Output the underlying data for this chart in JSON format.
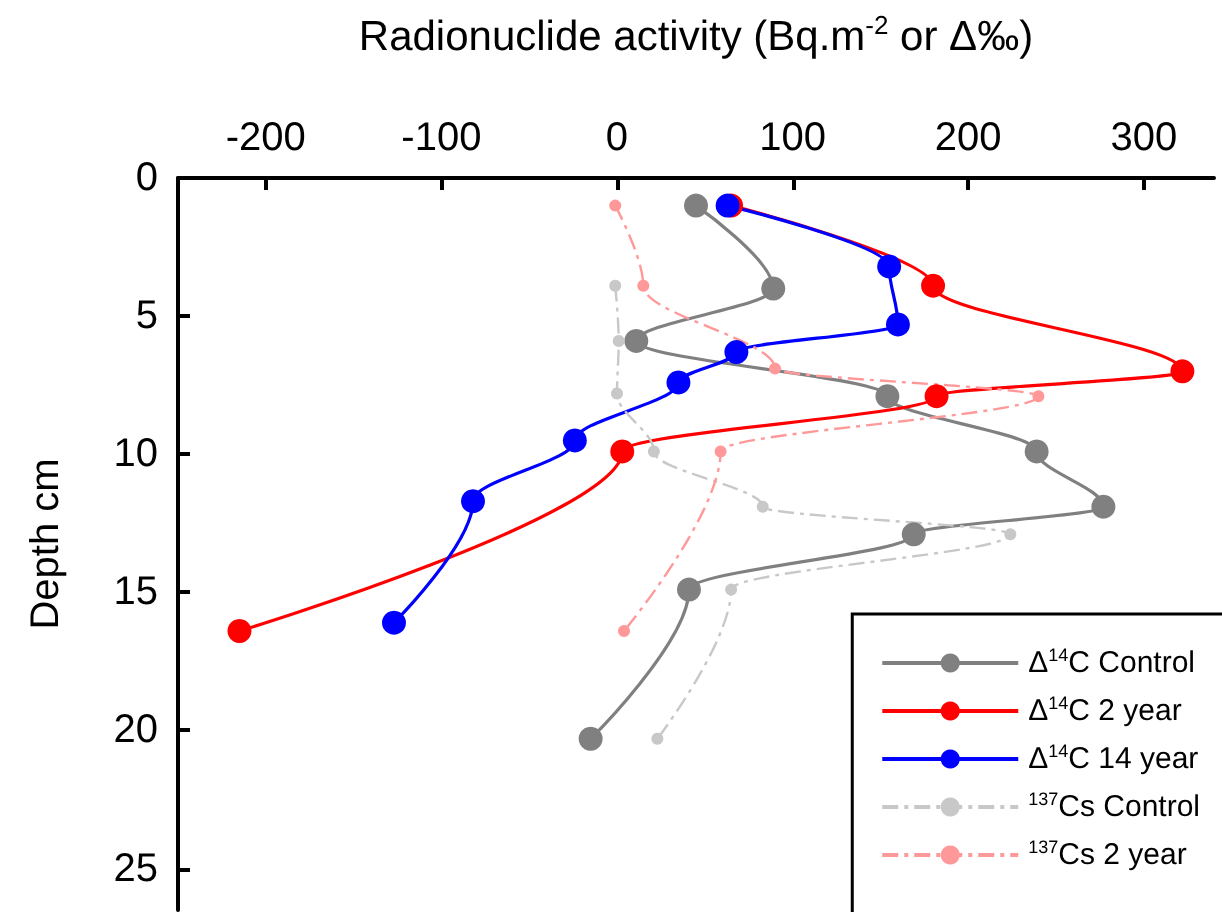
{
  "chart_data": {
    "type": "line",
    "xlabel": "Radionuclide activity (Bq.m$^{-2}$ or Δ‰)",
    "ylabel": "Depth cm",
    "xlim": [
      -250,
      340
    ],
    "xticks": [
      -200,
      -100,
      0,
      100,
      200,
      300
    ],
    "ylim": [
      26.5,
      0
    ],
    "yticks": [
      0,
      5,
      10,
      15,
      20,
      25
    ],
    "grid": false,
    "legend": "bottom right",
    "marker": "circle",
    "series": [
      {
        "name": "Δ$^{14}$C Control",
        "color": "#808080",
        "line_style": "solid",
        "x": [
          45,
          89,
          11,
          154,
          239,
          277,
          169,
          41,
          -15
        ],
        "values": [
          1,
          4,
          5.9,
          7.9,
          9.9,
          11.9,
          12.9,
          14.9,
          20.3
        ]
      },
      {
        "name": "Δ$^{14}$C 2 year",
        "color": "#ff0000",
        "line_style": "solid",
        "x": [
          65,
          180,
          322,
          182,
          3,
          -215
        ],
        "values": [
          1,
          3.9,
          7,
          7.9,
          9.9,
          16.4
        ]
      },
      {
        "name": "Δ$^{14}$C 14 year",
        "color": "#0000ff",
        "line_style": "solid",
        "x": [
          63,
          155,
          160,
          68,
          35,
          -24,
          -82,
          -127
        ],
        "values": [
          1,
          3.2,
          5.3,
          6.3,
          7.4,
          9.5,
          11.7,
          16.1
        ]
      },
      {
        "name": "$^{137}$Cs Control",
        "color": "#c8c8c8",
        "line_style": "dashed",
        "x": [
          -1,
          1,
          0,
          21,
          83,
          224,
          65,
          23
        ],
        "values": [
          3.9,
          5.9,
          7.8,
          9.9,
          11.9,
          12.9,
          14.9,
          20.3
        ]
      },
      {
        "name": "$^{137}$Cs 2 year",
        "color": "#ff9999",
        "line_style": "dashed",
        "x": [
          -1,
          15,
          90,
          240,
          59,
          4
        ],
        "values": [
          1,
          3.9,
          6.9,
          7.9,
          9.9,
          16.4
        ]
      }
    ]
  }
}
